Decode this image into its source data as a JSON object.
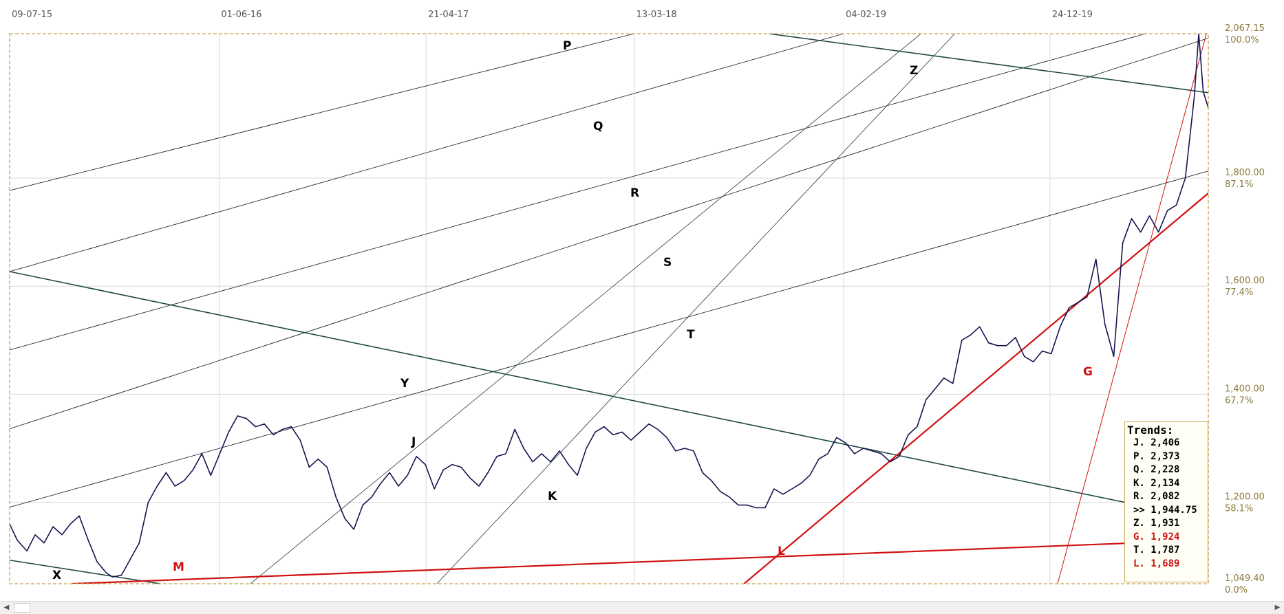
{
  "chart_data": {
    "type": "line",
    "x_labels": [
      "09-07-15",
      "01-06-16",
      "21-04-17",
      "13-03-18",
      "04-02-19",
      "24-12-19"
    ],
    "price_ticks": [
      "2,067.15",
      "1,800.00",
      "1,600.00",
      "1,400.00",
      "1,200.00",
      "1,049.40"
    ],
    "pct_ticks": [
      "100.0%",
      "87.1%",
      "77.4%",
      "67.7%",
      "58.1%",
      "0.0%"
    ],
    "price_axis_values": [
      2067.15,
      1800,
      1600,
      1400,
      1200,
      1049.4
    ],
    "ylim": [
      1049.4,
      2067.15
    ],
    "xlim": [
      "2015-07-09",
      "2020-08-28"
    ],
    "grid": true,
    "trend_labels": [
      {
        "label": "P",
        "color": "#000000"
      },
      {
        "label": "Q",
        "color": "#000000"
      },
      {
        "label": "R",
        "color": "#000000"
      },
      {
        "label": "S",
        "color": "#000000"
      },
      {
        "label": "T",
        "color": "#000000"
      },
      {
        "label": "Z",
        "color": "#000000"
      },
      {
        "label": "Y",
        "color": "#000000"
      },
      {
        "label": "J",
        "color": "#000000"
      },
      {
        "label": "K",
        "color": "#000000"
      },
      {
        "label": "X",
        "color": "#000000"
      },
      {
        "label": "M",
        "color": "#d01010"
      },
      {
        "label": "L",
        "color": "#d01010"
      },
      {
        "label": "G",
        "color": "#d01010"
      }
    ],
    "series": [
      {
        "x": [
          "2015-07-09",
          "2015-07-21",
          "2015-08-05",
          "2015-08-18",
          "2015-09-01",
          "2015-09-15",
          "2015-09-29",
          "2015-10-12",
          "2015-10-26",
          "2015-11-09",
          "2015-11-23",
          "2015-12-07",
          "2015-12-17",
          "2015-12-31",
          "2016-01-14",
          "2016-01-28",
          "2016-02-11",
          "2016-02-25",
          "2016-03-10",
          "2016-03-24",
          "2016-04-07",
          "2016-04-21",
          "2016-05-05",
          "2016-05-19",
          "2016-06-02",
          "2016-06-16",
          "2016-06-30",
          "2016-07-14",
          "2016-07-28",
          "2016-08-11",
          "2016-08-25",
          "2016-09-08",
          "2016-09-22",
          "2016-10-06",
          "2016-10-20",
          "2016-11-03",
          "2016-11-17",
          "2016-12-01",
          "2016-12-15",
          "2016-12-29",
          "2017-01-12",
          "2017-01-26",
          "2017-02-09",
          "2017-02-23",
          "2017-03-09",
          "2017-03-23",
          "2017-04-06",
          "2017-04-20",
          "2017-05-04",
          "2017-05-18",
          "2017-06-01",
          "2017-06-15",
          "2017-06-29",
          "2017-07-13",
          "2017-07-27",
          "2017-08-10",
          "2017-08-24",
          "2017-09-07",
          "2017-09-21",
          "2017-10-05",
          "2017-10-19",
          "2017-11-02",
          "2017-11-16",
          "2017-11-30",
          "2017-12-14",
          "2017-12-28",
          "2018-01-11",
          "2018-01-25",
          "2018-02-08",
          "2018-02-22",
          "2018-03-08",
          "2018-03-22",
          "2018-04-05",
          "2018-04-19",
          "2018-05-03",
          "2018-05-17",
          "2018-05-31",
          "2018-06-14",
          "2018-06-28",
          "2018-07-12",
          "2018-07-26",
          "2018-08-09",
          "2018-08-23",
          "2018-09-06",
          "2018-09-20",
          "2018-10-04",
          "2018-10-18",
          "2018-11-01",
          "2018-11-15",
          "2018-11-29",
          "2018-12-13",
          "2018-12-27",
          "2019-01-10",
          "2019-01-24",
          "2019-02-07",
          "2019-02-21",
          "2019-03-07",
          "2019-03-21",
          "2019-04-04",
          "2019-04-18",
          "2019-05-02",
          "2019-05-16",
          "2019-05-30",
          "2019-06-13",
          "2019-06-27",
          "2019-07-11",
          "2019-07-25",
          "2019-08-08",
          "2019-08-22",
          "2019-09-05",
          "2019-09-19",
          "2019-10-03",
          "2019-10-17",
          "2019-10-31",
          "2019-11-14",
          "2019-11-28",
          "2019-12-12",
          "2019-12-26",
          "2020-01-09",
          "2020-01-23",
          "2020-02-06",
          "2020-02-20",
          "2020-03-05",
          "2020-03-19",
          "2020-04-02",
          "2020-04-16",
          "2020-04-30",
          "2020-05-14",
          "2020-05-28",
          "2020-06-11",
          "2020-06-25",
          "2020-07-09",
          "2020-07-23",
          "2020-08-06",
          "2020-08-13",
          "2020-08-20",
          "2020-08-28"
        ],
        "y": [
          1160,
          1130,
          1110,
          1140,
          1125,
          1155,
          1140,
          1160,
          1175,
          1130,
          1090,
          1070,
          1062,
          1065,
          1095,
          1125,
          1200,
          1230,
          1255,
          1230,
          1240,
          1260,
          1290,
          1250,
          1290,
          1330,
          1360,
          1355,
          1340,
          1345,
          1325,
          1335,
          1340,
          1315,
          1265,
          1280,
          1265,
          1210,
          1170,
          1150,
          1195,
          1210,
          1235,
          1255,
          1230,
          1250,
          1285,
          1270,
          1225,
          1260,
          1270,
          1265,
          1245,
          1230,
          1255,
          1285,
          1290,
          1335,
          1300,
          1275,
          1290,
          1275,
          1295,
          1270,
          1250,
          1300,
          1330,
          1340,
          1325,
          1330,
          1315,
          1330,
          1345,
          1335,
          1320,
          1295,
          1300,
          1295,
          1255,
          1240,
          1220,
          1210,
          1195,
          1195,
          1190,
          1190,
          1225,
          1215,
          1225,
          1235,
          1250,
          1280,
          1290,
          1320,
          1310,
          1290,
          1300,
          1295,
          1290,
          1275,
          1285,
          1325,
          1340,
          1390,
          1410,
          1430,
          1420,
          1500,
          1510,
          1525,
          1495,
          1490,
          1490,
          1505,
          1470,
          1460,
          1480,
          1475,
          1525,
          1560,
          1570,
          1580,
          1650,
          1530,
          1470,
          1680,
          1725,
          1700,
          1730,
          1700,
          1740,
          1750,
          1800,
          1950,
          2067,
          1960,
          1930
        ]
      }
    ],
    "trendlines": [
      {
        "name": "P",
        "color": "#1f2b2b",
        "points": [
          [
            "2015-07-09",
            1777
          ],
          [
            "2018-03-13",
            2067.15
          ]
        ]
      },
      {
        "name": "Q",
        "color": "#1f2b2b",
        "points": [
          [
            "2015-07-09",
            1627
          ],
          [
            "2019-02-04",
            2067.15
          ]
        ]
      },
      {
        "name": "R",
        "color": "#1f2b2b",
        "points": [
          [
            "2015-07-09",
            1482
          ],
          [
            "2020-05-22",
            2067.15
          ]
        ]
      },
      {
        "name": "S",
        "color": "#1f2b2b",
        "points": [
          [
            "2015-07-09",
            1336
          ],
          [
            "2020-08-28",
            2059
          ]
        ]
      },
      {
        "name": "T",
        "color": "#1f2b2b",
        "points": [
          [
            "2015-07-09",
            1191
          ],
          [
            "2020-08-28",
            1813
          ]
        ]
      },
      {
        "name": "Z",
        "color": "#1f4a40",
        "points": [
          [
            "2018-10-10",
            2067.15
          ],
          [
            "2020-08-28",
            1958
          ]
        ]
      },
      {
        "name": "Y",
        "color": "#1f4a40",
        "points": [
          [
            "2015-07-09",
            1627
          ],
          [
            "2020-06-20",
            1185
          ]
        ]
      },
      {
        "name": "X",
        "color": "#1f4a40",
        "points": [
          [
            "2015-07-09",
            1093
          ],
          [
            "2016-03-01",
            1049.4
          ]
        ]
      },
      {
        "name": "J",
        "color": "#3a4a55",
        "points": [
          [
            "2016-07-20",
            1049.4
          ],
          [
            "2019-06-05",
            2067.15
          ]
        ]
      },
      {
        "name": "K",
        "color": "#3a4a55",
        "points": [
          [
            "2017-05-08",
            1049.4
          ],
          [
            "2019-07-28",
            2067.15
          ]
        ]
      },
      {
        "name": "M",
        "color": "#d01010",
        "points": [
          [
            "2015-10-15",
            1049.4
          ],
          [
            "2020-06-20",
            1127
          ]
        ]
      },
      {
        "name": "L",
        "color": "#d01010",
        "points": [
          [
            "2018-09-01",
            1049.4
          ],
          [
            "2020-08-28",
            1772
          ]
        ]
      },
      {
        "name": "G",
        "color": "#d01010",
        "points": [
          [
            "2020-01-05",
            1049.4
          ],
          [
            "2020-08-25",
            2067.15
          ]
        ]
      }
    ]
  },
  "legend": {
    "title": "Trends:",
    "rows": [
      {
        "text": "J. 2,406",
        "color": "#000000"
      },
      {
        "text": "P. 2,373",
        "color": "#000000"
      },
      {
        "text": "Q. 2,228",
        "color": "#000000"
      },
      {
        "text": "K. 2,134",
        "color": "#000000"
      },
      {
        "text": "R. 2,082",
        "color": "#000000"
      },
      {
        "text": ">> 1,944.75",
        "color": "#000000"
      },
      {
        "text": "Z. 1,931",
        "color": "#000000"
      },
      {
        "text": "G. 1,924",
        "color": "#d01010"
      },
      {
        "text": "T. 1,787",
        "color": "#000000"
      },
      {
        "text": "L. 1,689",
        "color": "#d01010"
      }
    ]
  },
  "scrollbar": {
    "left_arrow": "◀",
    "right_arrow": "▶"
  }
}
